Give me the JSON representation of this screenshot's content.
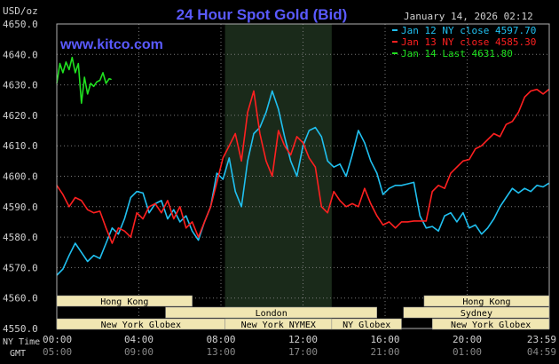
{
  "header": {
    "unit": "USD/oz",
    "title": "24 Hour Spot Gold (Bid)",
    "date": "January 14, 2026 02:12",
    "watermark": "www.kitco.com"
  },
  "colors": {
    "background": "#000000",
    "plot_border": "#b0b0b0",
    "grid": "#7a7a7a",
    "shaded_session": "#1a2a1a",
    "title": "#5a5aff",
    "watermark": "#5a5aff",
    "axis_text": "#d0d0d0",
    "session_fill": "#f0e6b2",
    "session_text": "#000000",
    "series_jan12": "#20c0f0",
    "series_jan13": "#ff2020",
    "series_jan14": "#20e020"
  },
  "legend": [
    {
      "text": "Jan 12 NY close 4597.70",
      "color": "#20c0f0"
    },
    {
      "text": "Jan 13 NY close 4585.30",
      "color": "#ff2020"
    },
    {
      "text": "Jan 14 Last 4631.80",
      "color": "#20e020"
    }
  ],
  "sessions": [
    {
      "label": "Hong Kong",
      "start": 0,
      "end": 6.6
    },
    {
      "label": "London",
      "start": 5.3,
      "end": 15.6
    },
    {
      "label": "New York Globex",
      "start": 0,
      "end": 8.2
    },
    {
      "label": "New York NYMEX",
      "start": 8.2,
      "end": 13.4
    },
    {
      "label": "NY Globex",
      "start": 13.4,
      "end": 16.8
    },
    {
      "label": "Hong Kong",
      "start": 17.9,
      "end": 24
    },
    {
      "label": "Sydney",
      "start": 16.9,
      "end": 24
    },
    {
      "label": "New York Globex",
      "start": 18.3,
      "end": 24
    }
  ],
  "time_axis": {
    "ny_label": "NY Time",
    "gmt_label": "GMT",
    "ny_ticks": [
      "00:00",
      "04:00",
      "08:00",
      "12:00",
      "16:00",
      "20:00",
      "23:59"
    ],
    "gmt_ticks": [
      "05:00",
      "09:00",
      "13:00",
      "17:00",
      "21:00",
      "01:00",
      "04:59"
    ]
  },
  "chart_data": {
    "type": "line",
    "title": "24 Hour Spot Gold (Bid)",
    "ylabel": "USD/oz",
    "ylim": [
      4550,
      4650
    ],
    "yticks": [
      "4550.0",
      "4560.0",
      "4570.0",
      "4580.0",
      "4590.0",
      "4600.0",
      "4610.0",
      "4620.0",
      "4630.0",
      "4640.0",
      "4650.0"
    ],
    "xlim_hours": [
      0,
      24
    ],
    "shaded_hours": [
      8.2,
      13.4
    ],
    "grid": true,
    "legend_position": "top-right",
    "series": [
      {
        "name": "Jan 12 NY close 4597.70",
        "color": "#20c0f0",
        "x": [
          0,
          0.3,
          0.6,
          0.9,
          1.2,
          1.5,
          1.8,
          2.1,
          2.4,
          2.7,
          3.0,
          3.3,
          3.6,
          3.9,
          4.2,
          4.5,
          4.8,
          5.1,
          5.4,
          5.7,
          6.0,
          6.3,
          6.6,
          6.9,
          7.2,
          7.5,
          7.8,
          8.1,
          8.4,
          8.7,
          9.0,
          9.3,
          9.6,
          9.9,
          10.2,
          10.5,
          10.8,
          11.1,
          11.4,
          11.7,
          12.0,
          12.3,
          12.6,
          12.9,
          13.2,
          13.5,
          13.8,
          14.1,
          14.4,
          14.7,
          15.0,
          15.3,
          15.6,
          15.9,
          16.2,
          16.5,
          16.8,
          17.1,
          17.4,
          17.7,
          18.0,
          18.3,
          18.6,
          18.9,
          19.2,
          19.5,
          19.8,
          20.1,
          20.4,
          20.7,
          21.0,
          21.3,
          21.6,
          21.9,
          22.2,
          22.5,
          22.8,
          23.1,
          23.4,
          23.7,
          23.98
        ],
        "y": [
          4567.5,
          4569.5,
          4574.0,
          4578.0,
          4575.0,
          4572.0,
          4574.0,
          4573.0,
          4578.0,
          4583.0,
          4581.0,
          4586.0,
          4593.0,
          4595.0,
          4594.5,
          4588.0,
          4591.0,
          4592.0,
          4586.0,
          4589.0,
          4585.0,
          4587.0,
          4582.0,
          4579.0,
          4585.0,
          4590.0,
          4601.0,
          4599.0,
          4606.0,
          4595.0,
          4590.0,
          4605.0,
          4614.0,
          4616.0,
          4621.0,
          4628.0,
          4622.0,
          4613.0,
          4605.0,
          4600.0,
          4610.0,
          4615.0,
          4616.0,
          4613.0,
          4605.0,
          4603.0,
          4604.0,
          4600.0,
          4607.0,
          4615.0,
          4611.0,
          4605.0,
          4601.0,
          4594.0,
          4596.0,
          4597.0,
          4597.0,
          4597.5,
          4598.0,
          4587.0,
          4583.0,
          4583.5,
          4582.0,
          4587.0,
          4588.0,
          4585.0,
          4588.0,
          4583.0,
          4584.0,
          4581.0,
          4583.0,
          4586.0,
          4590.0,
          4593.0,
          4596.0,
          4594.5,
          4596.0,
          4595.0,
          4597.0,
          4596.5,
          4597.7
        ]
      },
      {
        "name": "Jan 13 NY close 4585.30",
        "color": "#ff2020",
        "x": [
          0,
          0.3,
          0.6,
          0.9,
          1.2,
          1.5,
          1.8,
          2.1,
          2.4,
          2.7,
          3.0,
          3.3,
          3.6,
          3.9,
          4.2,
          4.5,
          4.8,
          5.1,
          5.4,
          5.7,
          6.0,
          6.3,
          6.6,
          6.9,
          7.2,
          7.5,
          7.8,
          8.1,
          8.4,
          8.7,
          9.0,
          9.3,
          9.6,
          9.9,
          10.2,
          10.5,
          10.8,
          11.1,
          11.4,
          11.7,
          12.0,
          12.3,
          12.6,
          12.9,
          13.2,
          13.5,
          13.8,
          14.1,
          14.4,
          14.7,
          15.0,
          15.3,
          15.6,
          15.9,
          16.2,
          16.5,
          16.8,
          17.1,
          17.4,
          17.7,
          18.0,
          18.3,
          18.6,
          18.9,
          19.2,
          19.5,
          19.8,
          20.1,
          20.4,
          20.7,
          21.0,
          21.3,
          21.6,
          21.9,
          22.2,
          22.5,
          22.8,
          23.1,
          23.4,
          23.7,
          23.98
        ],
        "y": [
          4597.0,
          4594.0,
          4590.0,
          4593.0,
          4592.0,
          4589.0,
          4588.0,
          4588.5,
          4583.0,
          4578.0,
          4583.0,
          4582.0,
          4580.0,
          4588.0,
          4586.0,
          4590.0,
          4591.0,
          4588.0,
          4592.0,
          4586.0,
          4590.0,
          4583.0,
          4585.0,
          4580.0,
          4585.0,
          4590.0,
          4598.0,
          4606.0,
          4610.0,
          4614.0,
          4605.0,
          4621.0,
          4628.0,
          4614.0,
          4605.0,
          4600.0,
          4615.0,
          4610.0,
          4607.0,
          4613.0,
          4611.0,
          4606.0,
          4603.0,
          4590.0,
          4588.0,
          4595.0,
          4592.0,
          4590.0,
          4591.0,
          4590.0,
          4596.0,
          4591.0,
          4587.0,
          4584.0,
          4585.0,
          4583.0,
          4585.0,
          4585.0,
          4585.3,
          4585.3,
          4585.3,
          4595.0,
          4597.0,
          4596.0,
          4601.0,
          4603.0,
          4605.0,
          4605.5,
          4609.0,
          4610.0,
          4612.0,
          4614.0,
          4613.0,
          4617.0,
          4618.0,
          4621.0,
          4626.0,
          4628.0,
          4628.5,
          4627.0,
          4628.5
        ]
      },
      {
        "name": "Jan 14 Last 4631.80",
        "color": "#20e020",
        "x": [
          0,
          0.15,
          0.3,
          0.45,
          0.6,
          0.75,
          0.9,
          1.05,
          1.2,
          1.35,
          1.5,
          1.65,
          1.8,
          1.95,
          2.1,
          2.25,
          2.4,
          2.55,
          2.65
        ],
        "y": [
          4630.5,
          4637.0,
          4634.0,
          4637.5,
          4635.0,
          4639.0,
          4634.0,
          4637.0,
          4624.0,
          4632.5,
          4627.0,
          4630.5,
          4629.5,
          4631.0,
          4631.5,
          4634.0,
          4630.5,
          4632.0,
          4631.8
        ]
      }
    ]
  }
}
